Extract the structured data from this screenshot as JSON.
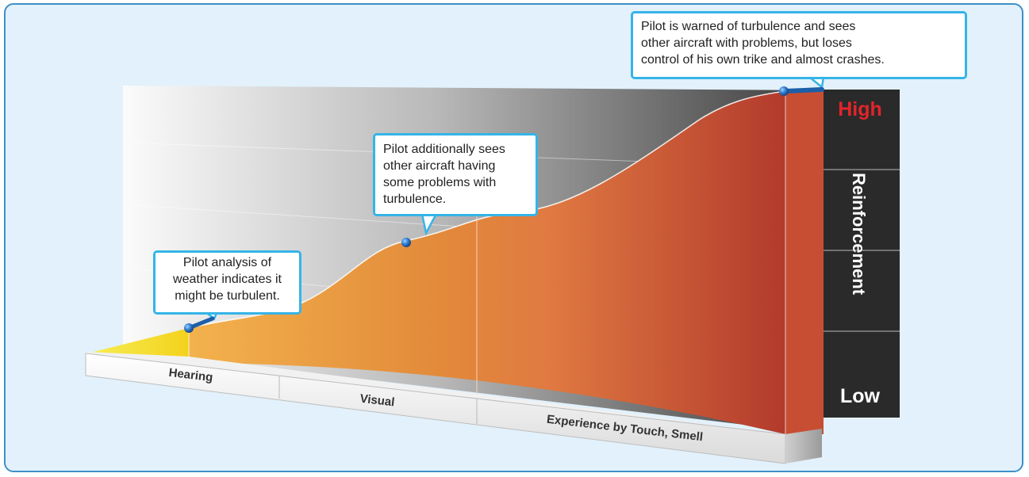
{
  "base_labels": [
    "Hearing",
    "Visual",
    "Experience by Touch, Smell"
  ],
  "scale": {
    "axis_label": "Reinforcement",
    "high_label": "High",
    "low_label": "Low"
  },
  "callouts": [
    {
      "lines": [
        "Pilot analysis of",
        "weather indicates it",
        "might be turbulent."
      ]
    },
    {
      "lines": [
        "Pilot additionally sees",
        "other aircraft having",
        "some problems with",
        "turbulence."
      ]
    },
    {
      "lines": [
        "Pilot is warned of turbulence and sees",
        "other aircraft with problems, but loses",
        "control of his own trike and almost crashes."
      ]
    }
  ],
  "colors": {
    "frame_border": "#3f8fc8",
    "frame_fill": "#e2f1fb",
    "callout_border": "#35b4e8",
    "high_text": "#e2242b",
    "low_text": "#ffffff",
    "scale_bar": "#2a2a2a",
    "pin": "#1d5fa8",
    "area_start": "#f3b24d",
    "area_end": "#b23a2c",
    "hearing_fill": "#f5e53a"
  }
}
